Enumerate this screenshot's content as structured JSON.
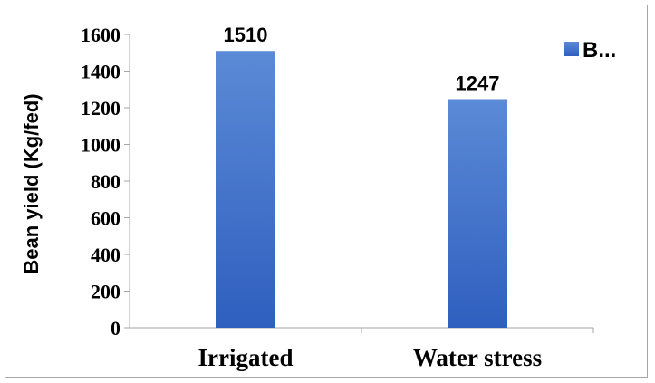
{
  "chart_data": {
    "type": "bar",
    "categories": [
      "Irrigated",
      "Water stress"
    ],
    "values": [
      1510,
      1247
    ],
    "data_labels": [
      "1510",
      "1247"
    ],
    "xlabel": "",
    "ylabel": "Bean yield (Kg/fed)",
    "ylim": [
      0,
      1600
    ],
    "yticks": [
      0,
      200,
      400,
      600,
      800,
      1000,
      1200,
      1400,
      1600
    ],
    "ytick_labels": [
      "0",
      "200",
      "400",
      "600",
      "800",
      "1000",
      "1200",
      "1400",
      "1600"
    ],
    "grid": false,
    "legend": {
      "position": "top-right",
      "entries": [
        "B..."
      ]
    },
    "colors": {
      "bar_top": "#5b8ad6",
      "bar_bottom": "#2f5fbf",
      "axis": "#a6a6a6"
    }
  }
}
